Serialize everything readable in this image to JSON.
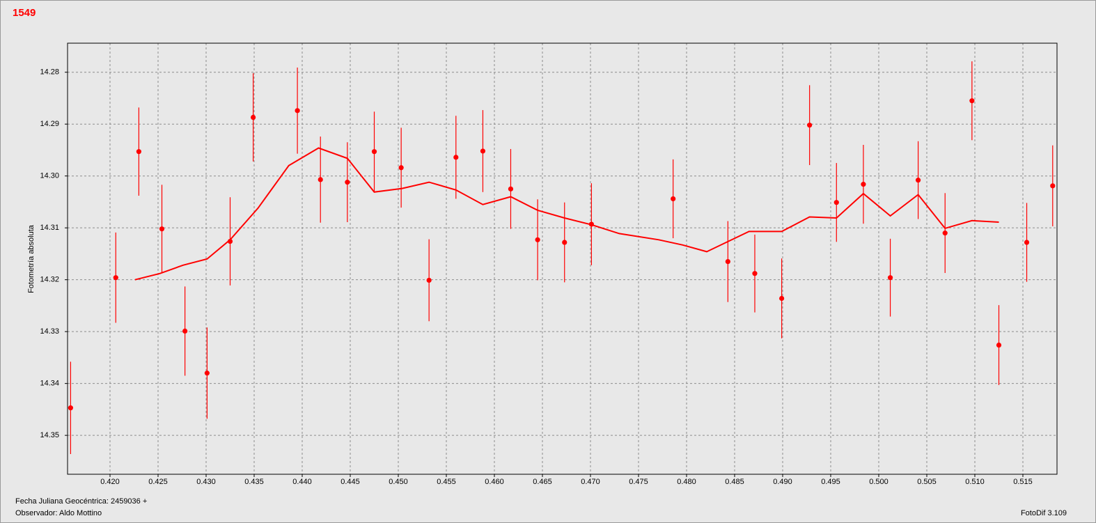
{
  "chart_data": {
    "type": "scatter",
    "title": "1549",
    "y_label": "Fotometría absoluta",
    "annotations": [
      "Fecha Juliana Geocéntrica: 2459036 +",
      "Observador: Aldo Mottino",
      "FotoDif 3.109"
    ],
    "xlim": [
      0.41558,
      0.51855
    ],
    "ylim": [
      14.3575,
      14.2744
    ],
    "xticks": [
      {
        "value": 0.42,
        "label": "0.420"
      },
      {
        "value": 0.425,
        "label": "0.425"
      },
      {
        "value": 0.43,
        "label": "0.430"
      },
      {
        "value": 0.435,
        "label": "0.435"
      },
      {
        "value": 0.44,
        "label": "0.440"
      },
      {
        "value": 0.445,
        "label": "0.445"
      },
      {
        "value": 0.45,
        "label": "0.450"
      },
      {
        "value": 0.455,
        "label": "0.455"
      },
      {
        "value": 0.46,
        "label": "0.460"
      },
      {
        "value": 0.465,
        "label": "0.465"
      },
      {
        "value": 0.47,
        "label": "0.470"
      },
      {
        "value": 0.475,
        "label": "0.475"
      },
      {
        "value": 0.48,
        "label": "0.480"
      },
      {
        "value": 0.485,
        "label": "0.485"
      },
      {
        "value": 0.49,
        "label": "0.490"
      },
      {
        "value": 0.495,
        "label": "0.495"
      },
      {
        "value": 0.5,
        "label": "0.500"
      },
      {
        "value": 0.505,
        "label": "0.505"
      },
      {
        "value": 0.51,
        "label": "0.510"
      },
      {
        "value": 0.515,
        "label": "0.515"
      }
    ],
    "yticks": [
      14.28,
      14.29,
      {
        "value": 14.3,
        "label": "14.30"
      },
      14.31,
      14.32,
      14.33,
      14.34,
      14.35
    ],
    "grid": true,
    "series": [
      {
        "type": "scatter",
        "color": "#ff0000",
        "x": [
          0.4159,
          0.4206,
          0.423,
          0.4254,
          0.4278,
          0.4301,
          0.4325,
          0.4349,
          0.4395,
          0.4419,
          0.4447,
          0.4475,
          0.4503,
          0.4532,
          0.456,
          0.4588,
          0.4617,
          0.4645,
          0.4673,
          0.4701,
          0.4786,
          0.4843,
          0.4871,
          0.4899,
          0.4928,
          0.4956,
          0.4984,
          0.5012,
          0.5041,
          0.5069,
          0.5097,
          0.5125,
          0.5154,
          0.5181
        ],
        "values": [
          14.3447,
          14.3196,
          14.2953,
          14.3102,
          14.3299,
          14.338,
          14.3126,
          14.2887,
          14.2874,
          14.3007,
          14.3012,
          14.2953,
          14.2984,
          14.3201,
          14.2964,
          14.2952,
          14.3025,
          14.3123,
          14.3128,
          14.3093,
          14.3044,
          14.3165,
          14.3188,
          14.3236,
          14.2902,
          14.3051,
          14.3016,
          14.3196,
          14.3008,
          14.311,
          14.2855,
          14.3326,
          14.3128,
          14.3019
        ],
        "errors": [
          0.0089,
          0.0087,
          0.0085,
          0.0085,
          0.0086,
          0.0088,
          0.0085,
          0.0085,
          0.0083,
          0.0083,
          0.0077,
          0.0077,
          0.0077,
          0.0079,
          0.008,
          0.0079,
          0.0077,
          0.0078,
          0.0077,
          0.0079,
          0.0076,
          0.0078,
          0.0075,
          0.0077,
          0.0077,
          0.0076,
          0.0076,
          0.0075,
          0.0075,
          0.0077,
          0.0076,
          0.0077,
          0.0076,
          0.0078
        ]
      },
      {
        "type": "line",
        "color": "#ff0000",
        "x": [
          0.4226,
          0.4252,
          0.4276,
          0.4301,
          0.4325,
          0.4354,
          0.4386,
          0.4417,
          0.4447,
          0.4475,
          0.4504,
          0.4532,
          0.456,
          0.4588,
          0.4617,
          0.4645,
          0.4673,
          0.4701,
          0.473,
          0.4771,
          0.4796,
          0.4821,
          0.4865,
          0.4899,
          0.4928,
          0.4956,
          0.4984,
          0.5012,
          0.5041,
          0.5069,
          0.5097,
          0.5125
        ],
        "values": [
          14.32,
          14.3188,
          14.3172,
          14.316,
          14.3123,
          14.3062,
          14.298,
          14.2946,
          14.2966,
          14.3031,
          14.3024,
          14.3012,
          14.3027,
          14.3055,
          14.304,
          14.3066,
          14.3081,
          14.3094,
          14.3111,
          14.3123,
          14.3133,
          14.3146,
          14.3107,
          14.3107,
          14.3079,
          14.3081,
          14.3034,
          14.3077,
          14.3036,
          14.3101,
          14.3086,
          14.3089
        ]
      }
    ]
  }
}
